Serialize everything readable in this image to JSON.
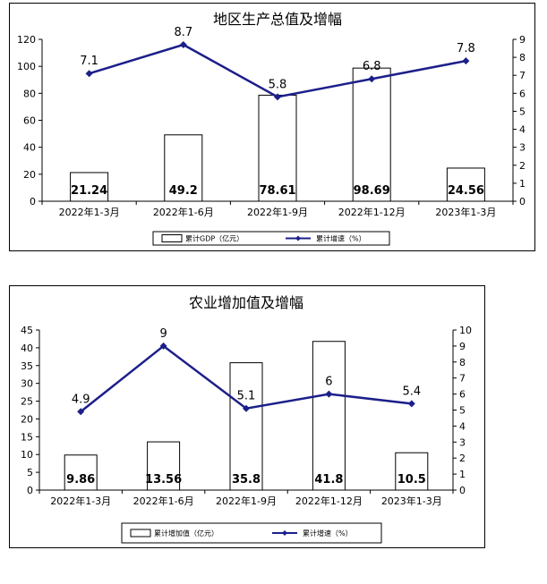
{
  "chart_data": [
    {
      "type": "bar",
      "title": "地区生产总值及增幅",
      "categories": [
        "2022年1-3月",
        "2022年1-6月",
        "2022年1-9月",
        "2022年1-12月",
        "2023年1-3月"
      ],
      "series": [
        {
          "name": "累计GDP（亿元）",
          "type": "bar",
          "axis": "left",
          "values": [
            21.24,
            49.2,
            78.61,
            98.69,
            24.56
          ],
          "labels": [
            "21.24",
            "49.2",
            "78.61",
            "98.69",
            "24.56"
          ]
        },
        {
          "name": "累计增速（%）",
          "type": "line",
          "axis": "right",
          "color": "#1c1f8a",
          "values": [
            7.1,
            8.7,
            5.8,
            6.8,
            7.8
          ],
          "labels": [
            "7.1",
            "8.7",
            "5.8",
            "6.8",
            "7.8"
          ]
        }
      ],
      "ylim": [
        0,
        120
      ],
      "yticks": [
        0,
        20,
        40,
        60,
        80,
        100,
        120
      ],
      "y2lim": [
        0,
        9
      ],
      "y2ticks": [
        0,
        1,
        2,
        3,
        4,
        5,
        6,
        7,
        8,
        9
      ],
      "legend_placement": "bottom",
      "grid": false
    },
    {
      "type": "bar",
      "title": "农业增加值及增幅",
      "categories": [
        "2022年1-3月",
        "2022年1-6月",
        "2022年1-9月",
        "2022年1-12月",
        "2023年1-3月"
      ],
      "series": [
        {
          "name": "累计增加值（亿元）",
          "type": "bar",
          "axis": "left",
          "values": [
            9.86,
            13.56,
            35.8,
            41.8,
            10.5
          ],
          "labels": [
            "9.86",
            "13.56",
            "35.8",
            "41.8",
            "10.5"
          ]
        },
        {
          "name": "累计增速（%）",
          "type": "line",
          "axis": "right",
          "color": "#1c1f8a",
          "values": [
            4.9,
            9,
            5.1,
            6,
            5.4
          ],
          "labels": [
            "4.9",
            "9",
            "5.1",
            "6",
            "5.4"
          ]
        }
      ],
      "ylim": [
        0,
        45
      ],
      "yticks": [
        0,
        5,
        10,
        15,
        20,
        25,
        30,
        35,
        40,
        45
      ],
      "y2lim": [
        0,
        10
      ],
      "y2ticks": [
        0,
        1,
        2,
        3,
        4,
        5,
        6,
        7,
        8,
        9,
        10
      ],
      "legend_placement": "bottom",
      "grid": false
    }
  ]
}
